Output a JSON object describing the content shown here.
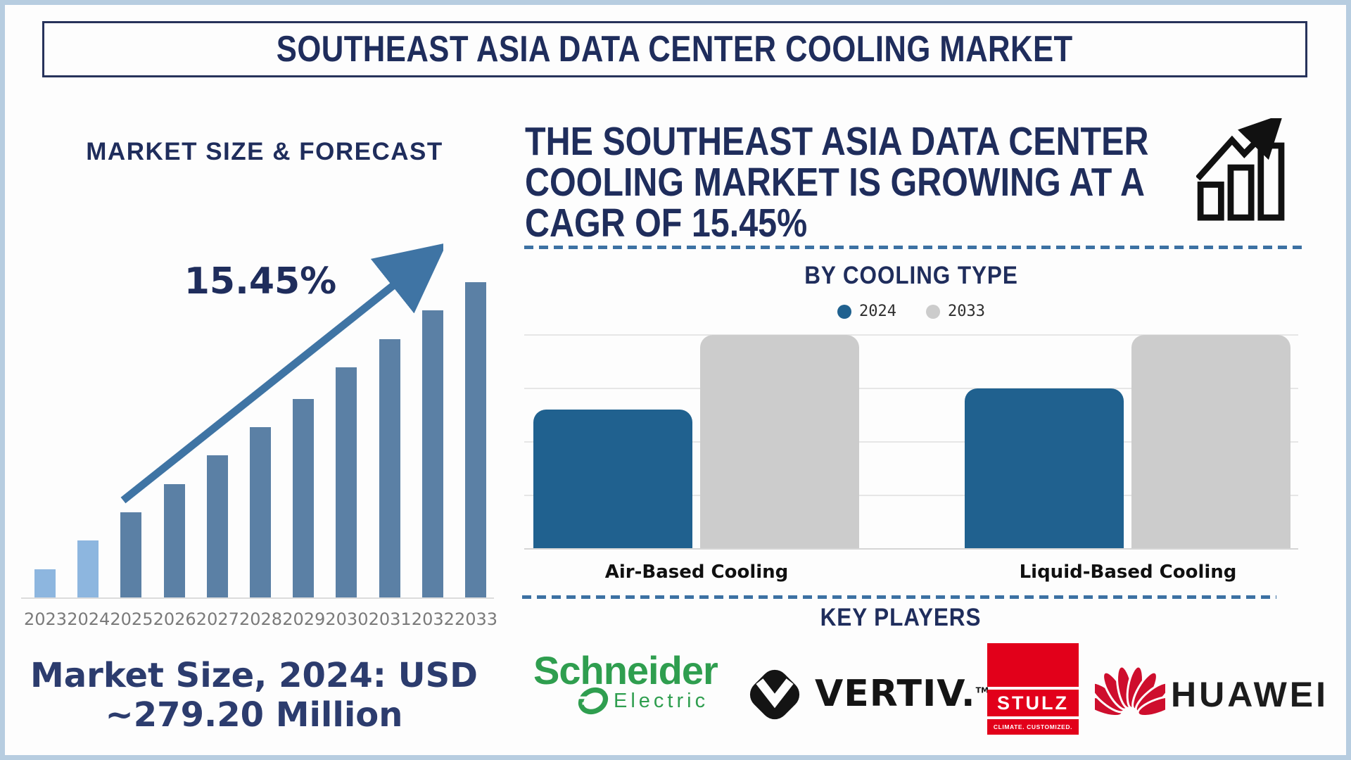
{
  "title": "SOUTHEAST ASIA DATA CENTER COOLING MARKET",
  "colors": {
    "navy": "#1f2d5c",
    "steel_blue_arrow": "#3f74a4",
    "bar_light_blue": "#8db6df",
    "bar_slate_blue": "#5b80a5",
    "bar_blue_2024": "#20618f",
    "bar_gray_2033": "#cccccc",
    "frame_blue": "#b7cde0",
    "schneider_green": "#2f9e4f",
    "stulz_red": "#e2001a",
    "huawei_red": "#ce0e2d",
    "vertiv_black": "#141414"
  },
  "left_panel": {
    "heading": "MARKET SIZE & FORECAST",
    "cagr_label": "15.45%",
    "market_size_line1": "Market Size, 2024: USD",
    "market_size_line2": "~279.20 Million"
  },
  "right_panel": {
    "headline": "THE SOUTHEAST ASIA DATA CENTER COOLING MARKET IS GROWING AT A CAGR OF 15.45%",
    "headline_lines": [
      "THE SOUTHEAST ASIA DATA CENTER",
      "COOLING MARKET IS GROWING AT A",
      "CAGR OF 15.45%"
    ],
    "section_title": "BY COOLING TYPE",
    "key_players_title": "KEY PLAYERS",
    "players": [
      {
        "name": "Schneider Electric",
        "wordmark_line1": "Schneider",
        "wordmark_line2": "Electric"
      },
      {
        "name": "Vertiv",
        "wordmark": "VERTIV.",
        "tm": "TM"
      },
      {
        "name": "STULZ",
        "wordmark": "STULZ",
        "tagline": "CLIMATE. CUSTOMIZED."
      },
      {
        "name": "Huawei",
        "wordmark": "HUAWEI"
      }
    ]
  },
  "chart_data": [
    {
      "type": "bar",
      "title": "MARKET SIZE & FORECAST",
      "categories": [
        "2023",
        "2024",
        "2025",
        "2026",
        "2027",
        "2028",
        "2029",
        "2030",
        "2031",
        "2032",
        "2033"
      ],
      "values": [
        9,
        18,
        27,
        36,
        45,
        54,
        63,
        73,
        82,
        91,
        100
      ],
      "units": "relative bar height, % of 2033 bar (no numeric axis shown)",
      "ylim": [
        0,
        100
      ],
      "grid": false,
      "annotations": [
        "15.45% growth arrow",
        "Market Size, 2024: USD ~279.20 Million"
      ],
      "bar_colors": {
        "years_2023_2024": "#8db6df",
        "years_2025_2033": "#5b80a5"
      }
    },
    {
      "type": "bar",
      "title": "BY COOLING TYPE",
      "categories": [
        "Air-Based Cooling",
        "Liquid-Based Cooling"
      ],
      "series": [
        {
          "name": "2024",
          "color": "#20618f",
          "values": [
            65,
            75
          ]
        },
        {
          "name": "2033",
          "color": "#cccccc",
          "values": [
            100,
            100
          ]
        }
      ],
      "units": "relative bar height, % of 2033 bars (no numeric axis shown)",
      "ylim": [
        0,
        100
      ],
      "grid": true,
      "legend_position": "top"
    }
  ]
}
